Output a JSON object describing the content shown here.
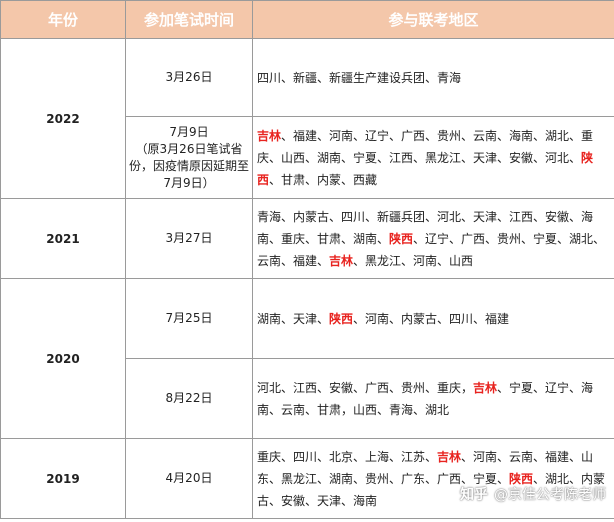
{
  "header": {
    "year": "年份",
    "exam_time": "参加笔试时间",
    "regions": "参与联考地区"
  },
  "rows": [
    {
      "year": "2022",
      "entries": [
        {
          "date": "3月26日",
          "regions": [
            "四川、新疆、新疆生产建设兵团、青海"
          ]
        },
        {
          "date": [
            "7月9日",
            "（原3月26日笔试省",
            "份，因疫情原因延期至",
            "7月9日）"
          ],
          "regions": [
            {
              "t": "吉林",
              "hl": true
            },
            {
              "t": "、福建、河南、辽宁、广西、贵州、云南、海南、湖北、重庆、山西、湖南、宁夏、江西、黑龙江、天津、安徽、河北、"
            },
            {
              "t": "陕西",
              "hl": true
            },
            {
              "t": "、甘肃、内蒙、西藏"
            }
          ]
        }
      ]
    },
    {
      "year": "2021",
      "entries": [
        {
          "date": "3月27日",
          "regions": [
            {
              "t": "青海、内蒙古、四川、新疆兵团、河北、天津、江西、安徽、海南、重庆、甘肃、湖南、"
            },
            {
              "t": "陕西",
              "hl": true
            },
            {
              "t": "、辽宁、广西、贵州、宁夏、湖北、云南、福建、"
            },
            {
              "t": "吉林",
              "hl": true
            },
            {
              "t": "、黑龙江、河南、山西"
            }
          ]
        }
      ]
    },
    {
      "year": "2020",
      "entries": [
        {
          "date": "7月25日",
          "regions": [
            {
              "t": "湖南、天津、"
            },
            {
              "t": "陕西",
              "hl": true
            },
            {
              "t": "、河南、内蒙古、四川、福建"
            }
          ]
        },
        {
          "date": "8月22日",
          "regions": [
            {
              "t": "河北、江西、安徽、广西、贵州、重庆，"
            },
            {
              "t": "吉林",
              "hl": true
            },
            {
              "t": "、宁夏、辽宁、海南、云南、甘肃，山西、青海、湖北"
            }
          ]
        }
      ]
    },
    {
      "year": "2019",
      "entries": [
        {
          "date": "4月20日",
          "regions": [
            {
              "t": "重庆、四川、北京、上海、江苏、"
            },
            {
              "t": "吉林",
              "hl": true
            },
            {
              "t": "、河南、云南、福建、山东、黑龙江、湖南、贵州、广东、广西、宁夏、"
            },
            {
              "t": "陕西",
              "hl": true
            },
            {
              "t": "、湖北、内蒙古、安徽、天津、海南"
            }
          ]
        }
      ]
    }
  ],
  "watermark": {
    "site": "知乎",
    "author": "@京佳公考陈老师"
  },
  "colors": {
    "header_bg": "#f4c7aa",
    "highlight": "#e8231f",
    "border": "#9a9a9a"
  }
}
